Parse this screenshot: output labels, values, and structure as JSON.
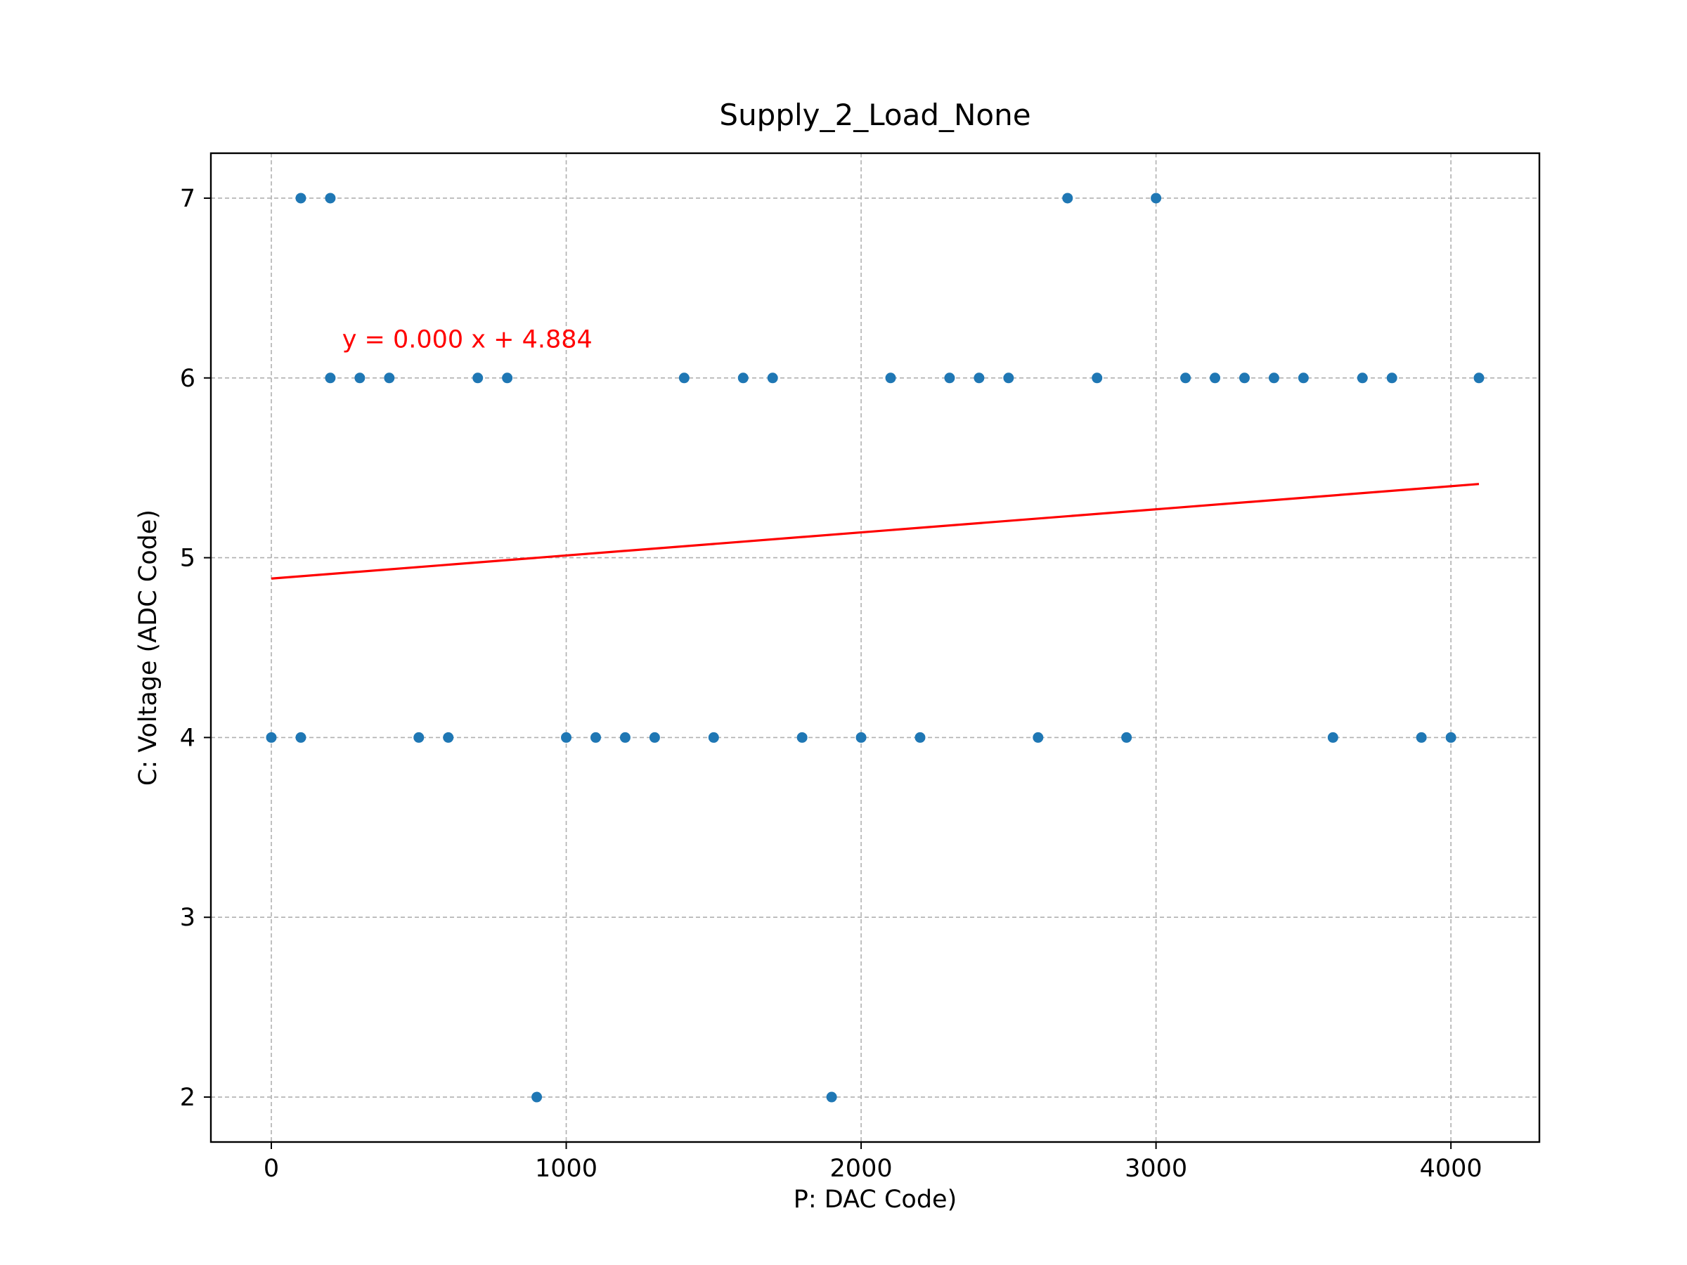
{
  "chart_data": {
    "type": "scatter",
    "title": "Supply_2_Load_None",
    "xlabel": "P: DAC Code)",
    "ylabel": "C: Voltage (ADC Code)",
    "xlim": [
      -205,
      4300
    ],
    "ylim": [
      1.75,
      7.25
    ],
    "xticks": [
      0,
      1000,
      2000,
      3000,
      4000
    ],
    "yticks": [
      2,
      3,
      4,
      5,
      6,
      7
    ],
    "grid": true,
    "point_color": "#1f77b4",
    "fit_color": "#ff0000",
    "points": [
      {
        "x": 0,
        "y": 4
      },
      {
        "x": 100,
        "y": 4
      },
      {
        "x": 100,
        "y": 7
      },
      {
        "x": 200,
        "y": 7
      },
      {
        "x": 200,
        "y": 6
      },
      {
        "x": 300,
        "y": 6
      },
      {
        "x": 400,
        "y": 6
      },
      {
        "x": 500,
        "y": 4
      },
      {
        "x": 600,
        "y": 4
      },
      {
        "x": 700,
        "y": 6
      },
      {
        "x": 800,
        "y": 6
      },
      {
        "x": 900,
        "y": 2
      },
      {
        "x": 1000,
        "y": 4
      },
      {
        "x": 1100,
        "y": 4
      },
      {
        "x": 1200,
        "y": 4
      },
      {
        "x": 1300,
        "y": 4
      },
      {
        "x": 1400,
        "y": 6
      },
      {
        "x": 1500,
        "y": 4
      },
      {
        "x": 1600,
        "y": 6
      },
      {
        "x": 1700,
        "y": 6
      },
      {
        "x": 1800,
        "y": 4
      },
      {
        "x": 1900,
        "y": 2
      },
      {
        "x": 2000,
        "y": 4
      },
      {
        "x": 2100,
        "y": 6
      },
      {
        "x": 2200,
        "y": 4
      },
      {
        "x": 2300,
        "y": 6
      },
      {
        "x": 2400,
        "y": 6
      },
      {
        "x": 2500,
        "y": 6
      },
      {
        "x": 2600,
        "y": 4
      },
      {
        "x": 2700,
        "y": 7
      },
      {
        "x": 2800,
        "y": 6
      },
      {
        "x": 2900,
        "y": 4
      },
      {
        "x": 3000,
        "y": 7
      },
      {
        "x": 3100,
        "y": 6
      },
      {
        "x": 3200,
        "y": 6
      },
      {
        "x": 3300,
        "y": 6
      },
      {
        "x": 3400,
        "y": 6
      },
      {
        "x": 3500,
        "y": 6
      },
      {
        "x": 3600,
        "y": 4
      },
      {
        "x": 3700,
        "y": 6
      },
      {
        "x": 3800,
        "y": 6
      },
      {
        "x": 3900,
        "y": 4
      },
      {
        "x": 4000,
        "y": 4
      },
      {
        "x": 4095,
        "y": 6
      }
    ],
    "fit_line": {
      "x": [
        0,
        4095
      ],
      "y": [
        4.884,
        5.41
      ]
    },
    "annotation": {
      "text": "y = 0.000 x + 4.884",
      "x": 240,
      "y": 6.17
    }
  }
}
